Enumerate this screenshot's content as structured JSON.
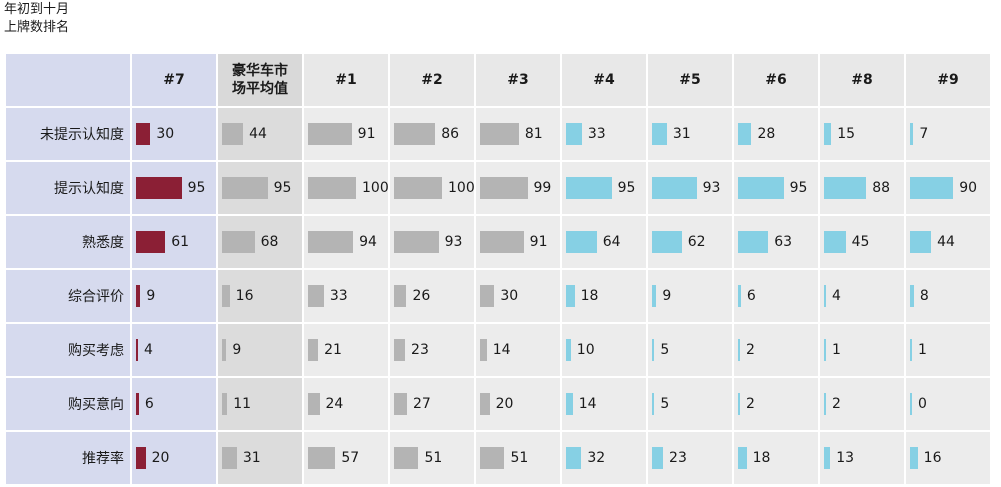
{
  "title_lines": [
    "年初到十月",
    "上牌数排名"
  ],
  "columns": [
    "#7",
    "豪华车市场平均值",
    "#1",
    "#2",
    "#3",
    "#4",
    "#5",
    "#6",
    "#8",
    "#9"
  ],
  "column_label_lines": [
    [
      "#7"
    ],
    [
      "豪华车市",
      "场平均值"
    ],
    [
      "#1"
    ],
    [
      "#2"
    ],
    [
      "#3"
    ],
    [
      "#4"
    ],
    [
      "#5"
    ],
    [
      "#6"
    ],
    [
      "#8"
    ],
    [
      "#9"
    ]
  ],
  "colors": {
    "highlight": "#8b1f35",
    "average": "#b4b4b4",
    "top": "#b4b4b4",
    "others": "#86d0e4",
    "header_highlight_bg": "#d6daee"
  },
  "chart_data": {
    "type": "table",
    "max_value": 100,
    "categories": [
      "未提示认知度",
      "提示认知度",
      "熟悉度",
      "综合评价",
      "购买考虑",
      "购买意向",
      "推荐率"
    ],
    "series": [
      {
        "name": "#7",
        "color_role": "highlight",
        "values": [
          30,
          95,
          61,
          9,
          4,
          6,
          20
        ]
      },
      {
        "name": "豪华车市场平均值",
        "color_role": "average",
        "values": [
          44,
          95,
          68,
          16,
          9,
          11,
          31
        ]
      },
      {
        "name": "#1",
        "color_role": "top",
        "values": [
          91,
          100,
          94,
          33,
          21,
          24,
          57
        ]
      },
      {
        "name": "#2",
        "color_role": "top",
        "values": [
          86,
          100,
          93,
          26,
          23,
          27,
          51
        ]
      },
      {
        "name": "#3",
        "color_role": "top",
        "values": [
          81,
          99,
          91,
          30,
          14,
          20,
          51
        ]
      },
      {
        "name": "#4",
        "color_role": "others",
        "values": [
          33,
          95,
          64,
          18,
          10,
          14,
          32
        ]
      },
      {
        "name": "#5",
        "color_role": "others",
        "values": [
          31,
          93,
          62,
          9,
          5,
          5,
          23
        ]
      },
      {
        "name": "#6",
        "color_role": "others",
        "values": [
          28,
          95,
          63,
          6,
          2,
          2,
          18
        ]
      },
      {
        "name": "#8",
        "color_role": "others",
        "values": [
          15,
          88,
          45,
          4,
          1,
          2,
          13
        ]
      },
      {
        "name": "#9",
        "color_role": "others",
        "values": [
          7,
          90,
          44,
          8,
          1,
          0,
          16
        ]
      }
    ]
  }
}
